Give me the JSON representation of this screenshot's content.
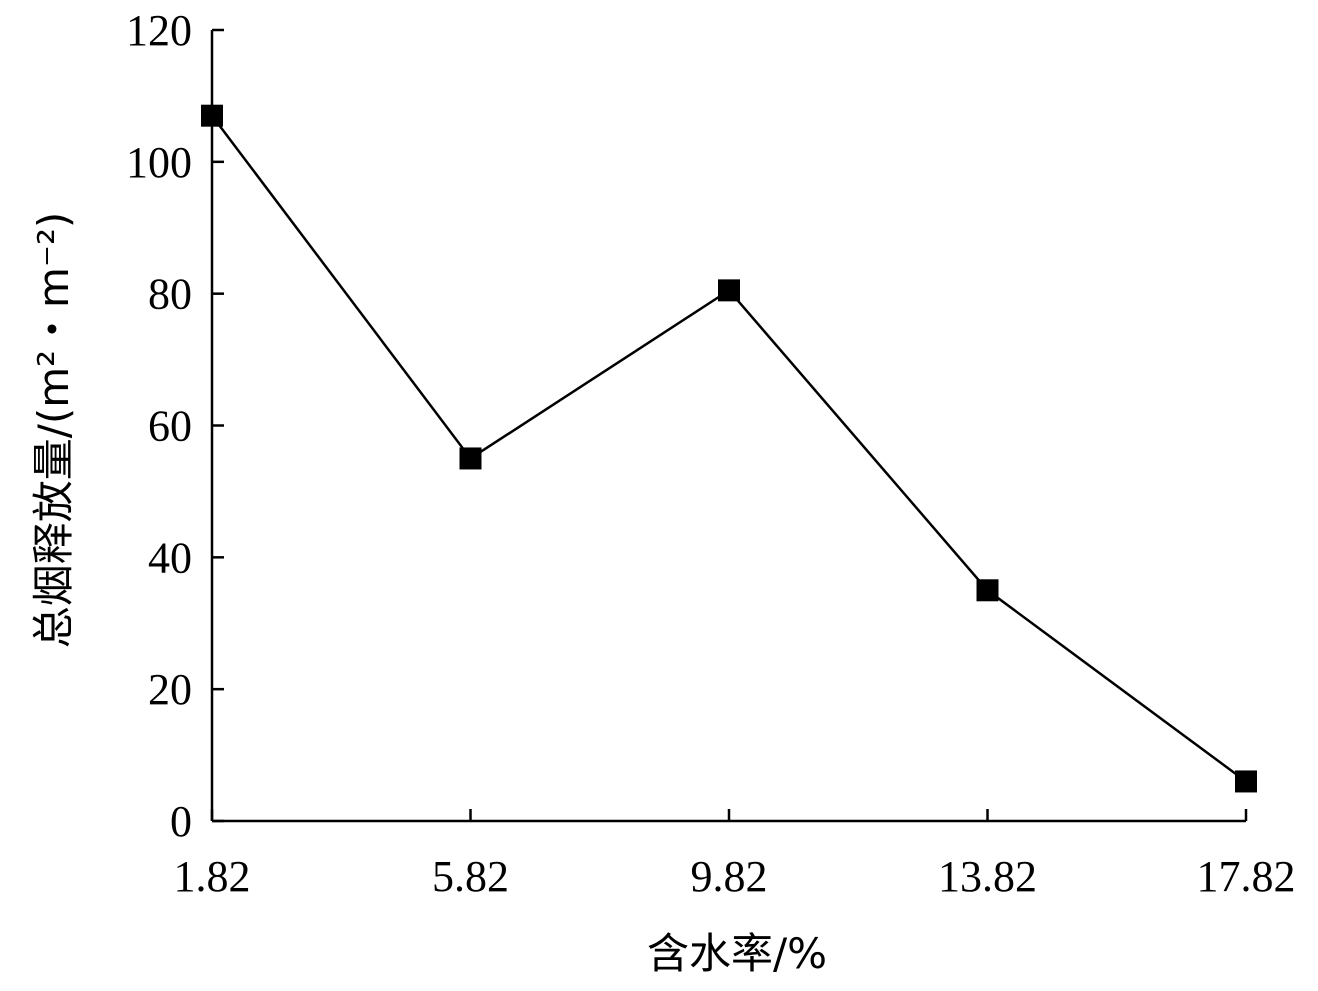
{
  "chart_data": {
    "type": "line",
    "title": "",
    "xlabel": "含水率/%",
    "ylabel": "总烟释放量/(m²・m⁻²)",
    "categories": [
      "1.82",
      "5.82",
      "9.82",
      "13.82",
      "17.82"
    ],
    "x": [
      1.82,
      5.82,
      9.82,
      13.82,
      17.82
    ],
    "series": [
      {
        "values": [
          107,
          55,
          80.5,
          35,
          6
        ]
      }
    ],
    "ylim": [
      0,
      120
    ],
    "yticks": [
      0,
      20,
      40,
      60,
      80,
      100,
      120
    ],
    "ytick_labels": [
      "0",
      "20",
      "40",
      "60",
      "80",
      "100",
      "120"
    ],
    "grid": false,
    "legend": "none",
    "marker": "square",
    "line_color": "#000000"
  }
}
